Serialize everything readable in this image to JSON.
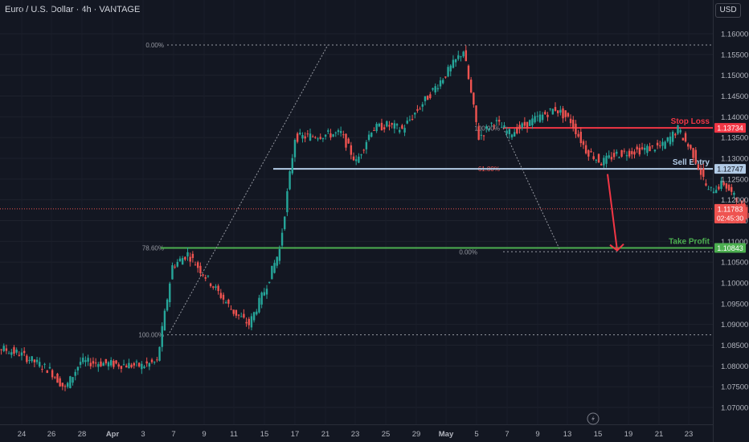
{
  "header": {
    "title": "Euro / U.S. Dollar · 4h · VANTAGE",
    "currency": "USD"
  },
  "colors": {
    "background": "#131722",
    "bull": "#26a69a",
    "bear": "#ef5350",
    "stop": "#f23645",
    "entry": "#b2cbe6",
    "take": "#4caf50",
    "fib": "#9598a1",
    "text": "#b2b5be"
  },
  "icons": [
    "lightning-icon"
  ],
  "chart_data": {
    "type": "candlestick",
    "symbol": "Euro / U.S. Dollar",
    "timeframe": "4h",
    "source": "VANTAGE",
    "x_tick_labels": [
      "24",
      "26",
      "28",
      "Apr",
      "3",
      "7",
      "9",
      "11",
      "15",
      "17",
      "21",
      "23",
      "25",
      "29",
      "May",
      "5",
      "7",
      "9",
      "13",
      "15",
      "19",
      "21",
      "23"
    ],
    "y_tick_labels": [
      "1.16000",
      "1.15500",
      "1.15000",
      "1.14500",
      "1.14000",
      "1.13500",
      "1.13000",
      "1.12500",
      "1.12000",
      "1.11500",
      "1.11000",
      "1.10500",
      "1.10000",
      "1.09500",
      "1.09000",
      "1.08500",
      "1.08000",
      "1.07500",
      "1.07000"
    ],
    "ylim": [
      1.0685,
      1.1625
    ],
    "approx_close_path": [
      {
        "x": "Mar 21",
        "y": 1.086
      },
      {
        "x": "Mar 24",
        "y": 1.083
      },
      {
        "x": "Mar 26",
        "y": 1.079
      },
      {
        "x": "Mar 27",
        "y": 1.0745
      },
      {
        "x": "Mar 28",
        "y": 1.081
      },
      {
        "x": "Apr 1",
        "y": 1.08
      },
      {
        "x": "Apr 2",
        "y": 1.081
      },
      {
        "x": "Apr 3",
        "y": 1.104
      },
      {
        "x": "Apr 4",
        "y": 1.107
      },
      {
        "x": "Apr 7",
        "y": 1.093
      },
      {
        "x": "Apr 8",
        "y": 1.09
      },
      {
        "x": "Apr 9",
        "y": 1.098
      },
      {
        "x": "Apr 10",
        "y": 1.108
      },
      {
        "x": "Apr 11",
        "y": 1.135
      },
      {
        "x": "Apr 14",
        "y": 1.136
      },
      {
        "x": "Apr 15",
        "y": 1.129
      },
      {
        "x": "Apr 16",
        "y": 1.137
      },
      {
        "x": "Apr 17",
        "y": 1.138
      },
      {
        "x": "Apr 18",
        "y": 1.137
      },
      {
        "x": "Apr 21",
        "y": 1.151
      },
      {
        "x": "Apr 22",
        "y": 1.156
      },
      {
        "x": "Apr 23",
        "y": 1.135
      },
      {
        "x": "Apr 24",
        "y": 1.139
      },
      {
        "x": "Apr 25",
        "y": 1.136
      },
      {
        "x": "Apr 28",
        "y": 1.142
      },
      {
        "x": "Apr 29",
        "y": 1.139
      },
      {
        "x": "Apr 30",
        "y": 1.132
      },
      {
        "x": "May 1",
        "y": 1.129
      },
      {
        "x": "May 2",
        "y": 1.131
      },
      {
        "x": "May 5",
        "y": 1.133
      },
      {
        "x": "May 6",
        "y": 1.137
      },
      {
        "x": "May 7",
        "y": 1.131
      },
      {
        "x": "May 8",
        "y": 1.122
      },
      {
        "x": "May 9",
        "y": 1.124
      },
      {
        "x": "May 12",
        "y": 1.109
      },
      {
        "x": "May 13",
        "y": 1.119
      },
      {
        "x": "May 14",
        "y": 1.1262
      },
      {
        "x": "May 15",
        "y": 1.1178
      }
    ],
    "fib_levels_upper": [
      {
        "label": "0.00%",
        "price": 1.1573
      },
      {
        "label": "100.00%",
        "price": 1.1373
      },
      {
        "label": "61.80%",
        "price": 1.1275
      },
      {
        "label": "0.00%",
        "price": 1.1075
      }
    ],
    "fib_levels_lower": [
      {
        "label": "78.60%",
        "price": 1.1084
      },
      {
        "label": "100.00%",
        "price": 1.0875
      }
    ],
    "trade_levels": [
      {
        "label": "Stop Loss",
        "price_label": "1.13734",
        "price": 1.13734,
        "color": "#f23645"
      },
      {
        "label": "Sell Entry",
        "price_label": "1.12747",
        "price": 1.12747,
        "color": "#b2cbe6"
      },
      {
        "label": "Take Profit",
        "price_label": "1.10843",
        "price": 1.10843,
        "color": "#4caf50"
      }
    ],
    "current_price": {
      "price_label": "1.11783",
      "countdown": "02:45:30",
      "price": 1.11783
    },
    "projection": {
      "from": {
        "x": "May 15",
        "y": 1.1262
      },
      "to": {
        "x": "May 17",
        "y": 1.1078
      }
    }
  }
}
